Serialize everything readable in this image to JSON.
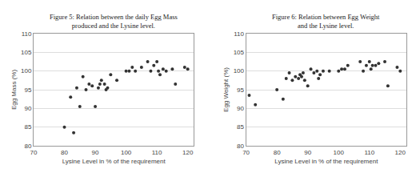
{
  "chart_data": [
    {
      "type": "scatter",
      "title": "Figure 5: Relation between the daily Egg Mass\nproduced and the Lysine level.",
      "xlabel": "Lysine Level in % of the requirement",
      "ylabel": "Egg Mass (%)",
      "x": [
        80,
        82,
        83,
        84,
        85,
        86,
        87,
        88,
        89,
        90,
        91,
        91.5,
        92,
        93,
        93.5,
        94,
        95,
        97,
        100,
        101,
        102,
        103,
        105,
        107,
        108,
        109,
        110,
        110.5,
        111,
        112,
        113,
        115,
        116,
        119,
        120
      ],
      "values": [
        85.0,
        93.0,
        83.5,
        95.5,
        90.5,
        98.5,
        95.0,
        96.5,
        96.0,
        90.5,
        95.5,
        96.5,
        97.5,
        96.5,
        95.0,
        95.5,
        99.0,
        97.5,
        100.0,
        100.0,
        101.0,
        100.0,
        101.0,
        102.5,
        100.0,
        101.5,
        102.5,
        100.0,
        99.0,
        100.5,
        100.0,
        100.5,
        96.5,
        101.0,
        100.5
      ],
      "color": "#333333",
      "marker": "circle",
      "xlim": [
        70,
        122
      ],
      "xticks": [
        70,
        80,
        90,
        100,
        110,
        120
      ],
      "ylim": [
        80,
        110
      ],
      "yticks": [
        80,
        85,
        90,
        95,
        100,
        105,
        110
      ],
      "grid": "y"
    },
    {
      "type": "scatter",
      "title": "Figure 6: Relation between Egg Weight\nand the Lysine level.",
      "xlabel": "Lysine Level in % of the requirement",
      "ylabel": "Egg Weight (%)",
      "x": [
        71,
        73,
        80,
        82,
        83,
        84,
        85,
        86,
        87,
        87.5,
        88,
        88.5,
        89,
        90,
        91,
        92,
        93,
        93.5,
        94,
        95,
        97,
        100,
        101,
        102,
        103,
        107,
        108,
        109,
        110,
        110.5,
        111,
        112,
        113,
        115,
        116,
        119,
        120
      ],
      "values": [
        93.5,
        91.0,
        95.0,
        92.5,
        98.0,
        99.5,
        97.5,
        98.5,
        98.0,
        99.0,
        98.5,
        99.5,
        97.5,
        96.0,
        100.5,
        99.5,
        100.0,
        98.0,
        99.0,
        100.0,
        100.0,
        100.0,
        100.5,
        100.5,
        101.5,
        102.5,
        100.0,
        101.5,
        102.5,
        100.5,
        101.5,
        101.5,
        102.0,
        102.5,
        96.0,
        101.0,
        100.0
      ],
      "color": "#333333",
      "marker": "circle",
      "xlim": [
        70,
        122
      ],
      "xticks": [
        70,
        80,
        90,
        100,
        110,
        120
      ],
      "ylim": [
        80,
        110
      ],
      "yticks": [
        80,
        85,
        90,
        95,
        100,
        105,
        110
      ],
      "grid": "y"
    }
  ]
}
